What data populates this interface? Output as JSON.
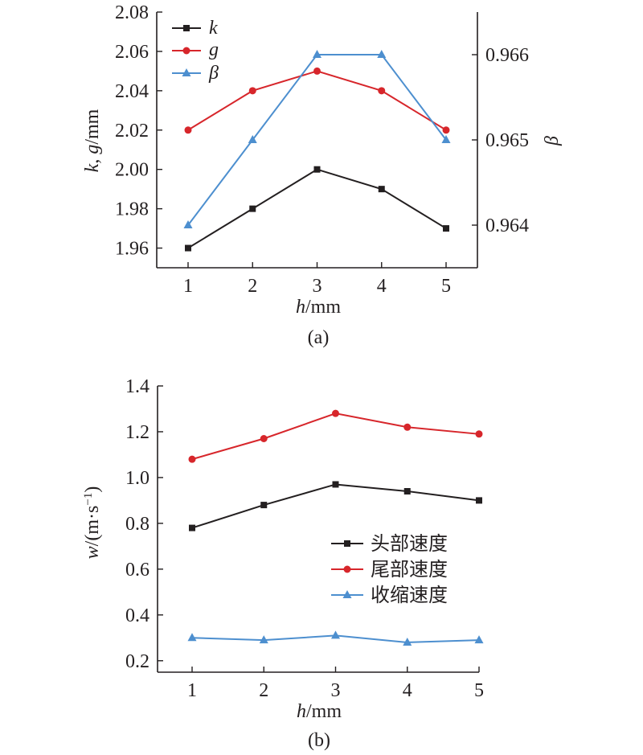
{
  "colors": {
    "black": "#231f20",
    "red": "#d7262b",
    "blue": "#4d8fcf"
  },
  "chart_data": [
    {
      "type": "line",
      "caption": "(a)",
      "x": [
        1,
        2,
        3,
        4,
        5
      ],
      "xlabel": "h/mm",
      "xlabel_italic": "h",
      "xlabel_unit": "/mm",
      "xticks": [
        "1",
        "2",
        "3",
        "4",
        "5"
      ],
      "ylabel": "k, g/mm",
      "ylabel_italic_1": "k",
      "ylabel_sep": ", ",
      "ylabel_italic_2": "g",
      "ylabel_unit": "/mm",
      "ylim": [
        1.95,
        2.08
      ],
      "yticks": [
        "1.96",
        "1.98",
        "2.00",
        "2.02",
        "2.04",
        "2.06",
        "2.08"
      ],
      "y2label": "β",
      "y2lim": [
        0.9635,
        0.9665
      ],
      "y2ticks": [
        "0.964",
        "0.965",
        "0.966"
      ],
      "legend_position": "top-left",
      "series": [
        {
          "name": "k",
          "axis": "left",
          "marker": "square",
          "color": "#231f20",
          "values": [
            1.96,
            1.98,
            2.0,
            1.99,
            1.97
          ]
        },
        {
          "name": "g",
          "axis": "left",
          "marker": "circle",
          "color": "#d7262b",
          "values": [
            2.02,
            2.04,
            2.05,
            2.04,
            2.02
          ]
        },
        {
          "name": "β",
          "axis": "right",
          "marker": "triangle",
          "color": "#4d8fcf",
          "values": [
            0.964,
            0.965,
            0.966,
            0.966,
            0.965
          ]
        }
      ]
    },
    {
      "type": "line",
      "caption": "(b)",
      "x": [
        1,
        2,
        3,
        4,
        5
      ],
      "xlabel": "h/mm",
      "xlabel_italic": "h",
      "xlabel_unit": "/mm",
      "xticks": [
        "1",
        "2",
        "3",
        "4",
        "5"
      ],
      "ylabel": "w/(m·s⁻¹)",
      "ylabel_italic": "w",
      "ylabel_unit": "/(m·s",
      "ylabel_sup": "−1",
      "ylabel_close": ")",
      "ylim": [
        0.15,
        1.4
      ],
      "yticks": [
        "0.2",
        "0.4",
        "0.6",
        "0.8",
        "1.0",
        "1.2",
        "1.4"
      ],
      "legend_position": "right",
      "series": [
        {
          "name": "头部速度",
          "marker": "square",
          "color": "#231f20",
          "values": [
            0.78,
            0.88,
            0.97,
            0.94,
            0.9
          ]
        },
        {
          "name": "尾部速度",
          "marker": "circle",
          "color": "#d7262b",
          "values": [
            1.08,
            1.17,
            1.28,
            1.22,
            1.19
          ]
        },
        {
          "name": "收缩速度",
          "marker": "triangle",
          "color": "#4d8fcf",
          "values": [
            0.3,
            0.29,
            0.31,
            0.28,
            0.29
          ]
        }
      ]
    }
  ]
}
